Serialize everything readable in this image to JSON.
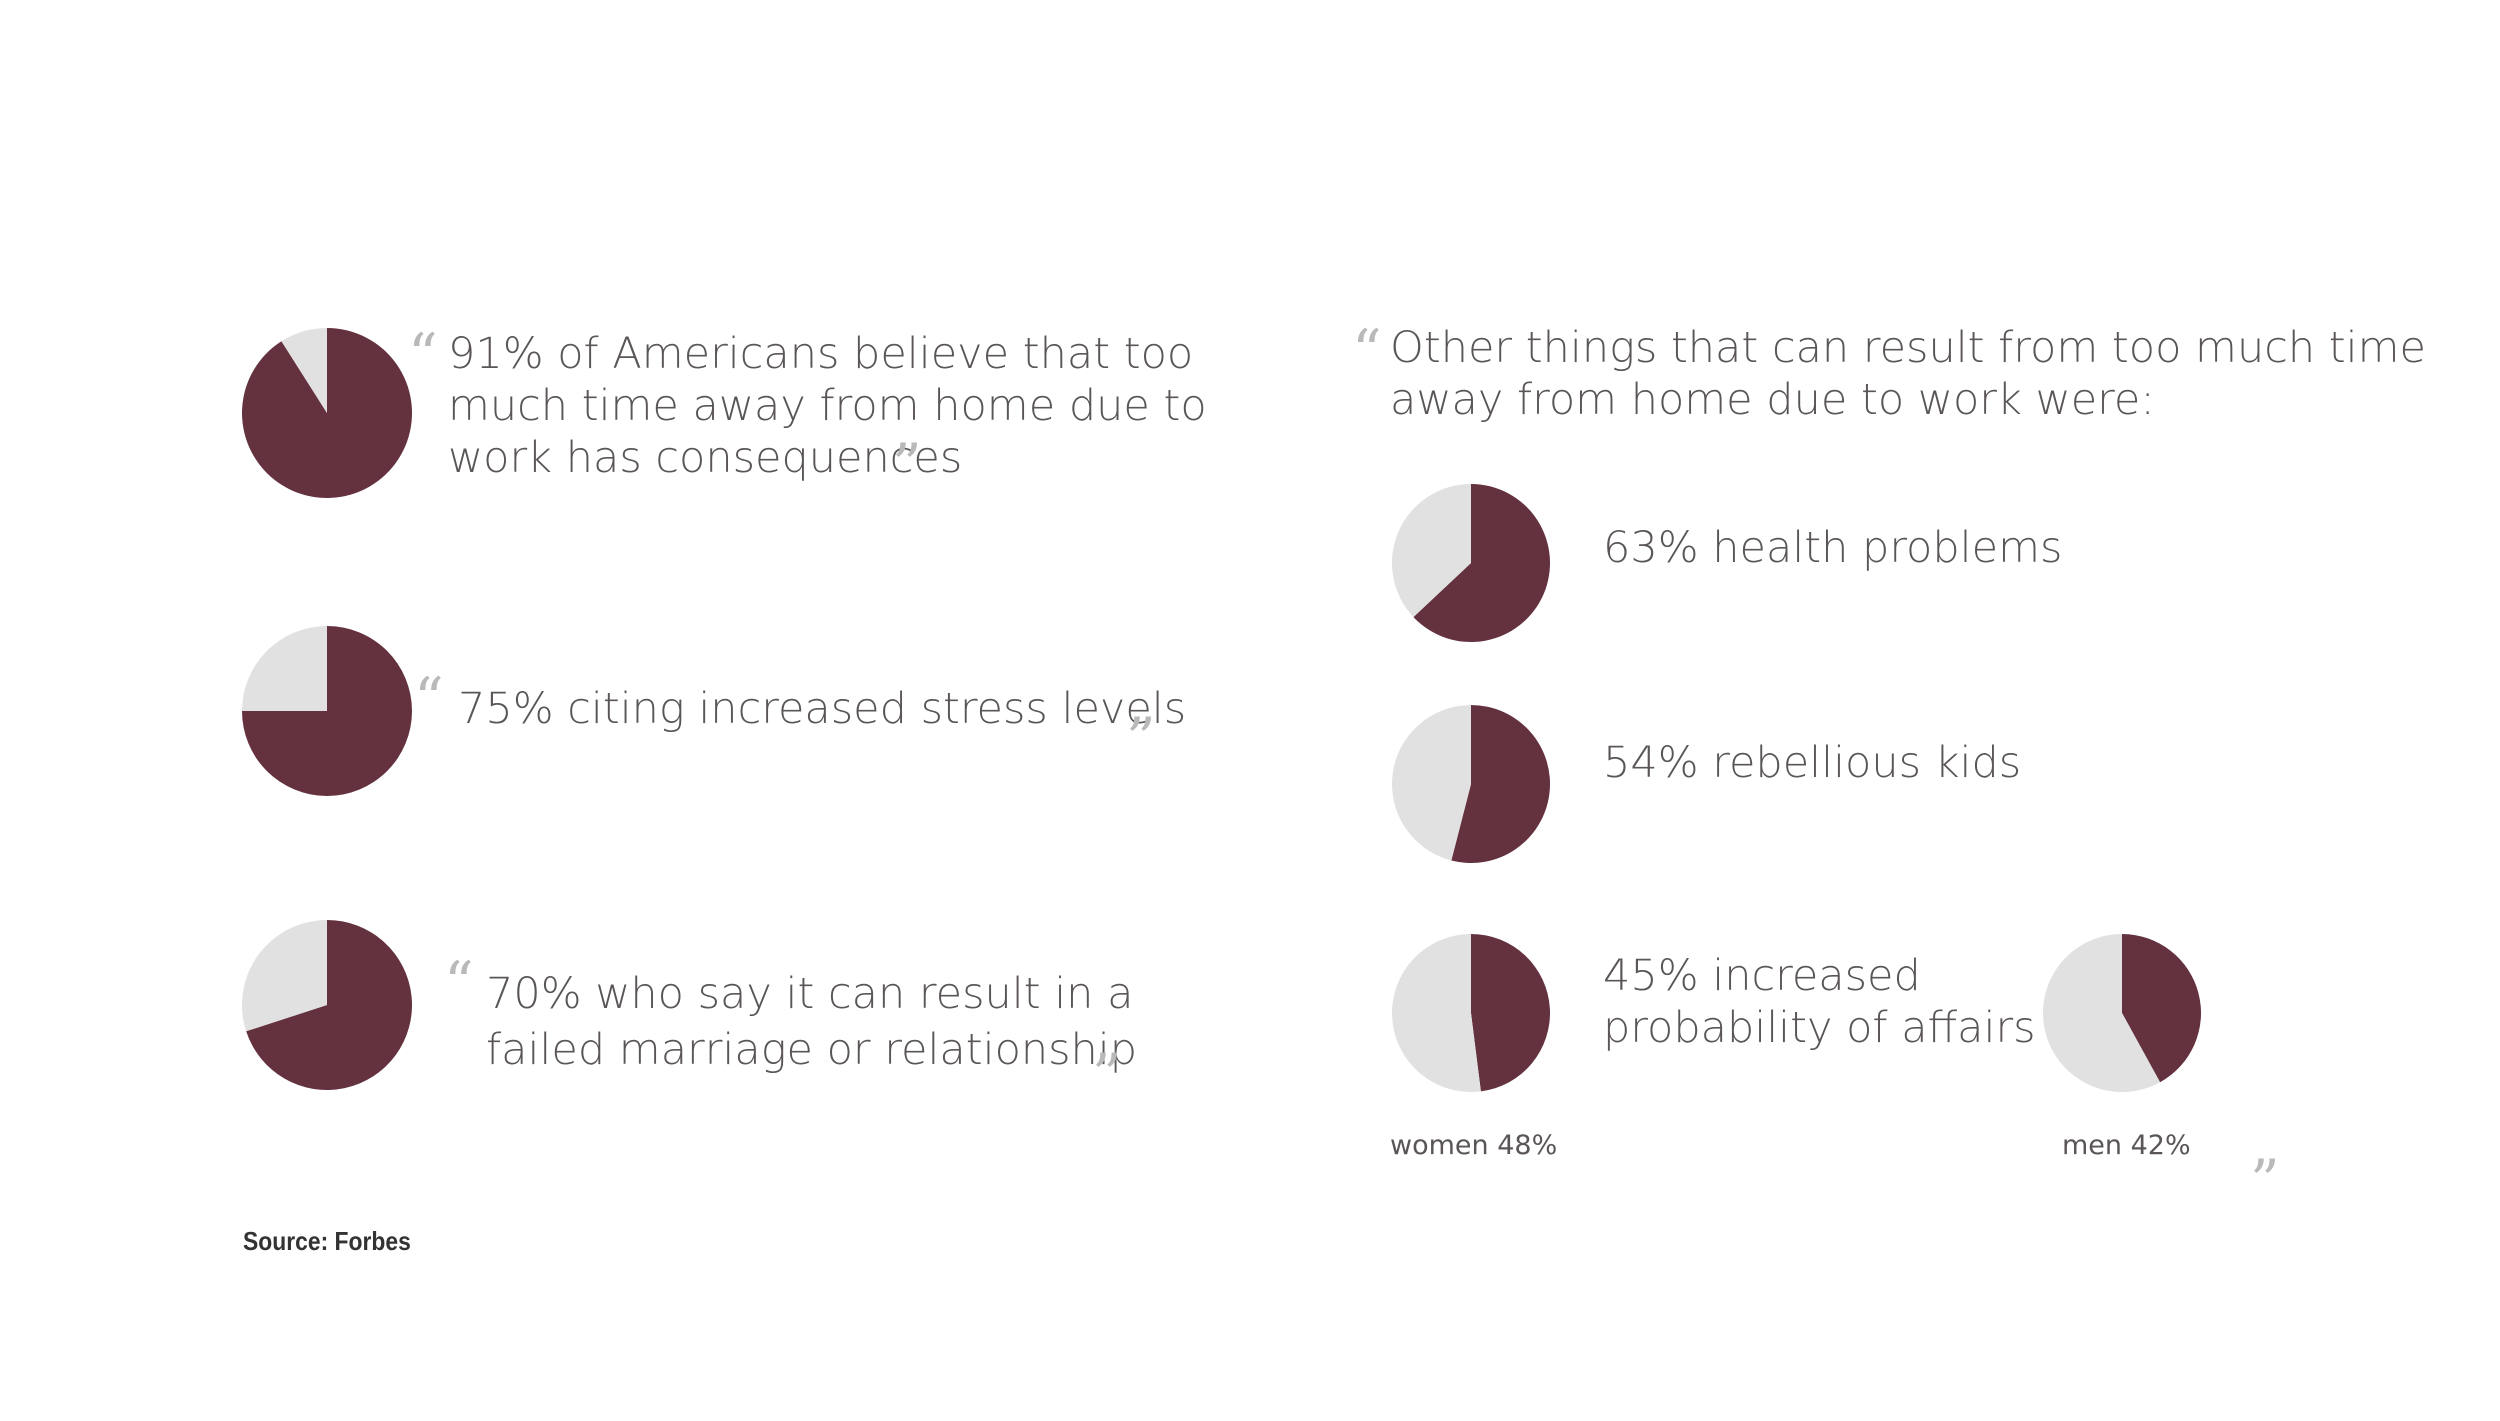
{
  "colors": {
    "accent": "#64323f",
    "rest": "#e1e1e1",
    "text": "#5a5558",
    "quote": "#b9b9b9"
  },
  "quotes": {
    "open": "“",
    "close": "”"
  },
  "left": {
    "stat1": {
      "line1": "91% of Americans believe that too",
      "line2": "much time away from home due to",
      "line3": "work has consequences"
    },
    "stat2": {
      "text": "75% citing increased stress levels"
    },
    "stat3": {
      "line1": "70% who say it can result in a",
      "line2": "failed marriage or relationship"
    }
  },
  "right": {
    "intro": {
      "line1": "Other things that can result from too much time",
      "line2": "away from home due to work were:"
    },
    "health": "63% health problems",
    "kids": "54% rebellious kids",
    "affairs": {
      "line1": "45% increased",
      "line2": "probability of affairs"
    },
    "women_label": "women 48%",
    "men_label": "men 42%"
  },
  "source": "Source: Forbes",
  "chart_data": [
    {
      "type": "pie",
      "id": "consequences",
      "values": [
        91,
        9
      ],
      "labels": [
        "91%",
        ""
      ]
    },
    {
      "type": "pie",
      "id": "stress",
      "values": [
        75,
        25
      ],
      "labels": [
        "75%",
        ""
      ]
    },
    {
      "type": "pie",
      "id": "marriage",
      "values": [
        70,
        30
      ],
      "labels": [
        "70%",
        ""
      ]
    },
    {
      "type": "pie",
      "id": "health",
      "values": [
        63,
        37
      ],
      "labels": [
        "63%",
        ""
      ]
    },
    {
      "type": "pie",
      "id": "kids",
      "values": [
        54,
        46
      ],
      "labels": [
        "54%",
        ""
      ]
    },
    {
      "type": "pie",
      "id": "women",
      "values": [
        48,
        52
      ],
      "labels": [
        "women 48%",
        ""
      ]
    },
    {
      "type": "pie",
      "id": "men",
      "values": [
        42,
        58
      ],
      "labels": [
        "men 42%",
        ""
      ]
    }
  ]
}
